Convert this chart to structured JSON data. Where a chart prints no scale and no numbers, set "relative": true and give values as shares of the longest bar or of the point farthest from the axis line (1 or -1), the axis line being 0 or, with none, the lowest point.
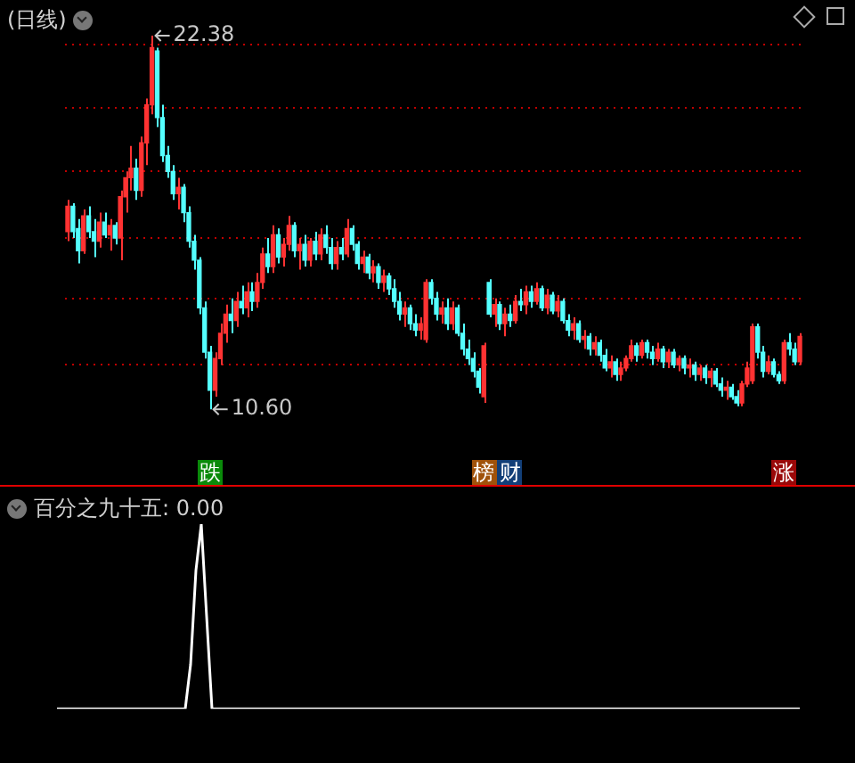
{
  "chart_data": [
    {
      "type": "candlestick",
      "title": "(日线)",
      "categories": [
        null,
        null,
        null,
        null,
        null,
        null,
        null,
        null,
        null,
        null,
        null,
        null,
        null,
        null,
        null,
        null,
        null,
        null,
        null,
        null,
        null,
        null,
        null,
        null,
        null,
        null,
        null,
        null,
        null,
        null,
        null,
        null,
        null,
        null,
        null,
        null,
        null,
        null,
        null,
        null,
        null,
        null,
        null,
        null,
        null,
        null,
        null,
        null,
        null,
        null,
        null,
        null,
        null,
        null,
        null,
        null,
        null,
        null,
        null,
        null,
        null,
        null,
        null,
        null,
        null,
        null,
        null,
        null,
        null,
        null,
        null,
        null,
        null,
        null,
        null,
        null,
        null,
        null,
        null,
        null,
        null,
        null,
        null,
        null,
        null,
        null,
        null,
        null,
        null,
        null,
        null,
        null,
        null,
        null,
        null,
        null,
        null,
        null,
        null,
        null,
        null,
        null,
        null,
        null,
        null,
        null,
        null,
        null,
        null,
        null,
        null,
        null,
        null,
        null,
        null,
        null,
        null,
        null,
        null,
        null,
        null,
        null,
        null,
        null,
        null,
        null,
        null,
        null,
        null,
        null,
        null,
        null,
        null,
        null,
        null,
        null,
        null,
        null,
        null,
        null
      ],
      "ohlc": [
        [
          16.2,
          17.2,
          15.9,
          17.0
        ],
        [
          17.0,
          17.1,
          16.0,
          16.2
        ],
        [
          16.3,
          16.6,
          15.2,
          15.6
        ],
        [
          15.6,
          16.9,
          15.5,
          16.7
        ],
        [
          16.7,
          17.0,
          16.0,
          16.2
        ],
        [
          16.2,
          16.6,
          15.4,
          15.9
        ],
        [
          15.9,
          16.8,
          15.7,
          16.5
        ],
        [
          16.5,
          16.8,
          16.0,
          16.1
        ],
        [
          16.1,
          16.6,
          15.6,
          16.4
        ],
        [
          16.4,
          16.5,
          15.8,
          16.0
        ],
        [
          16.0,
          17.5,
          15.3,
          17.3
        ],
        [
          17.3,
          18.1,
          16.8,
          17.9
        ],
        [
          17.9,
          18.9,
          17.5,
          18.2
        ],
        [
          18.2,
          18.5,
          17.2,
          17.5
        ],
        [
          17.5,
          19.2,
          17.3,
          19.0
        ],
        [
          19.0,
          20.4,
          18.3,
          20.2
        ],
        [
          20.2,
          22.38,
          19.9,
          22.0
        ],
        [
          21.9,
          22.0,
          19.5,
          19.8
        ],
        [
          19.8,
          20.2,
          18.4,
          18.6
        ],
        [
          18.6,
          18.9,
          17.9,
          18.1
        ],
        [
          18.1,
          18.3,
          17.2,
          17.4
        ],
        [
          17.4,
          17.9,
          16.9,
          17.6
        ],
        [
          17.6,
          17.7,
          16.5,
          16.8
        ],
        [
          16.8,
          17.0,
          15.7,
          15.9
        ],
        [
          15.9,
          16.1,
          15.0,
          15.3
        ],
        [
          15.3,
          15.4,
          13.6,
          13.8
        ],
        [
          13.8,
          14.0,
          12.2,
          12.4
        ],
        [
          12.4,
          12.6,
          10.6,
          11.2
        ],
        [
          11.2,
          12.4,
          11.0,
          12.2
        ],
        [
          12.2,
          13.3,
          12.0,
          13.0
        ],
        [
          13.0,
          13.9,
          12.7,
          13.6
        ],
        [
          13.6,
          14.1,
          13.0,
          13.4
        ],
        [
          13.4,
          14.3,
          13.2,
          14.0
        ],
        [
          14.0,
          14.5,
          13.6,
          13.8
        ],
        [
          13.8,
          14.6,
          13.5,
          14.3
        ],
        [
          14.3,
          14.6,
          13.7,
          14.0
        ],
        [
          14.0,
          14.9,
          13.8,
          14.6
        ],
        [
          14.6,
          15.7,
          14.4,
          15.5
        ],
        [
          15.5,
          16.0,
          14.9,
          15.1
        ],
        [
          15.1,
          16.4,
          14.9,
          16.1
        ],
        [
          16.1,
          16.3,
          15.2,
          15.4
        ],
        [
          15.4,
          16.0,
          15.1,
          15.8
        ],
        [
          15.8,
          16.7,
          15.6,
          16.4
        ],
        [
          16.4,
          16.5,
          15.4,
          15.6
        ],
        [
          15.6,
          16.0,
          15.0,
          15.8
        ],
        [
          15.8,
          16.1,
          15.1,
          15.3
        ],
        [
          15.3,
          16.0,
          15.1,
          15.9
        ],
        [
          15.9,
          16.2,
          15.3,
          15.5
        ],
        [
          15.5,
          16.3,
          15.3,
          16.1
        ],
        [
          16.1,
          16.4,
          15.5,
          15.7
        ],
        [
          15.7,
          16.0,
          15.0,
          15.2
        ],
        [
          15.2,
          15.9,
          15.0,
          15.7
        ],
        [
          15.7,
          16.0,
          15.3,
          15.5
        ],
        [
          15.5,
          16.6,
          15.4,
          16.3
        ],
        [
          16.3,
          16.4,
          15.6,
          15.8
        ],
        [
          15.8,
          15.9,
          15.0,
          15.2
        ],
        [
          15.2,
          15.6,
          14.9,
          15.4
        ],
        [
          15.4,
          15.5,
          14.7,
          14.9
        ],
        [
          14.9,
          15.3,
          14.6,
          15.1
        ],
        [
          15.1,
          15.2,
          14.4,
          14.6
        ],
        [
          14.6,
          15.0,
          14.3,
          14.8
        ],
        [
          14.8,
          14.9,
          14.2,
          14.4
        ],
        [
          14.4,
          14.7,
          13.8,
          14.0
        ],
        [
          14.0,
          14.3,
          13.4,
          13.6
        ],
        [
          13.6,
          14.0,
          13.2,
          13.8
        ],
        [
          13.8,
          13.9,
          13.1,
          13.3
        ],
        [
          13.3,
          13.6,
          12.9,
          13.1
        ],
        [
          13.1,
          13.5,
          12.8,
          13.3
        ],
        [
          12.8,
          14.7,
          12.7,
          14.6
        ],
        [
          14.6,
          14.7,
          13.9,
          14.1
        ],
        [
          14.1,
          14.3,
          13.4,
          13.6
        ],
        [
          13.6,
          14.0,
          13.3,
          13.8
        ],
        [
          13.8,
          14.1,
          13.1,
          13.3
        ],
        [
          13.3,
          14.0,
          13.1,
          13.8
        ],
        [
          13.8,
          13.9,
          12.9,
          13.0
        ],
        [
          13.0,
          13.3,
          12.3,
          12.5
        ],
        [
          12.5,
          12.8,
          12.0,
          12.2
        ],
        [
          12.2,
          12.4,
          11.6,
          11.8
        ],
        [
          11.8,
          11.9,
          11.1,
          11.3
        ],
        [
          11.0,
          12.7,
          10.8,
          12.6
        ],
        [
          14.6,
          14.7,
          13.5,
          13.6
        ],
        [
          13.6,
          14.1,
          13.2,
          13.9
        ],
        [
          13.9,
          14.0,
          13.1,
          13.3
        ],
        [
          13.3,
          13.8,
          12.9,
          13.6
        ],
        [
          13.6,
          13.9,
          13.2,
          13.4
        ],
        [
          13.4,
          14.2,
          13.3,
          14.0
        ],
        [
          14.0,
          14.4,
          13.7,
          13.9
        ],
        [
          13.9,
          14.5,
          13.6,
          14.3
        ],
        [
          14.3,
          14.5,
          13.8,
          14.0
        ],
        [
          14.0,
          14.6,
          13.9,
          14.4
        ],
        [
          14.4,
          14.5,
          13.7,
          13.8
        ],
        [
          13.8,
          14.4,
          13.6,
          14.2
        ],
        [
          14.2,
          14.3,
          13.6,
          13.7
        ],
        [
          13.7,
          14.2,
          13.5,
          14.0
        ],
        [
          14.0,
          14.1,
          13.3,
          13.4
        ],
        [
          13.4,
          13.6,
          12.9,
          13.1
        ],
        [
          13.1,
          13.5,
          12.8,
          13.3
        ],
        [
          13.3,
          13.4,
          12.7,
          12.8
        ],
        [
          12.8,
          13.1,
          12.5,
          12.9
        ],
        [
          12.9,
          13.0,
          12.3,
          12.5
        ],
        [
          12.5,
          12.9,
          12.3,
          12.7
        ],
        [
          12.7,
          12.8,
          12.1,
          12.3
        ],
        [
          12.3,
          12.5,
          11.8,
          11.9
        ],
        [
          11.9,
          12.3,
          11.6,
          12.1
        ],
        [
          12.1,
          12.2,
          11.5,
          11.7
        ],
        [
          11.7,
          12.1,
          11.5,
          11.9
        ],
        [
          11.9,
          12.3,
          11.8,
          12.2
        ],
        [
          12.2,
          12.8,
          12.1,
          12.6
        ],
        [
          12.6,
          12.7,
          12.1,
          12.3
        ],
        [
          12.3,
          12.8,
          12.2,
          12.7
        ],
        [
          12.7,
          12.8,
          12.2,
          12.4
        ],
        [
          12.4,
          12.6,
          12.0,
          12.2
        ],
        [
          12.2,
          12.7,
          12.1,
          12.5
        ],
        [
          12.5,
          12.6,
          11.9,
          12.1
        ],
        [
          12.1,
          12.5,
          11.9,
          12.4
        ],
        [
          12.4,
          12.5,
          11.9,
          12.0
        ],
        [
          12.0,
          12.3,
          11.8,
          12.2
        ],
        [
          12.2,
          12.3,
          11.7,
          11.9
        ],
        [
          11.9,
          12.2,
          11.6,
          12.0
        ],
        [
          12.0,
          12.1,
          11.5,
          11.7
        ],
        [
          11.7,
          12.0,
          11.5,
          11.9
        ],
        [
          11.9,
          12.0,
          11.4,
          11.6
        ],
        [
          11.6,
          11.9,
          11.3,
          11.8
        ],
        [
          11.8,
          11.9,
          11.3,
          11.4
        ],
        [
          11.4,
          11.6,
          11.0,
          11.2
        ],
        [
          11.2,
          11.5,
          10.9,
          11.3
        ],
        [
          11.3,
          11.4,
          10.9,
          11.0
        ],
        [
          11.0,
          11.2,
          10.7,
          10.8
        ],
        [
          10.8,
          11.5,
          10.7,
          11.4
        ],
        [
          11.4,
          12.1,
          11.3,
          11.9
        ],
        [
          11.5,
          13.3,
          11.4,
          13.2
        ],
        [
          13.2,
          13.3,
          12.2,
          12.4
        ],
        [
          12.4,
          12.6,
          11.6,
          11.8
        ],
        [
          11.8,
          12.3,
          11.7,
          12.1
        ],
        [
          12.1,
          12.2,
          11.6,
          11.7
        ],
        [
          11.7,
          11.8,
          11.4,
          11.5
        ],
        [
          11.5,
          12.8,
          11.4,
          12.7
        ],
        [
          12.7,
          13.0,
          12.3,
          12.5
        ],
        [
          12.5,
          12.7,
          12.0,
          12.1
        ],
        [
          12.1,
          13.0,
          12.0,
          12.9
        ]
      ],
      "colors": [
        "#ff3232",
        "#54ffff",
        "#54ffff",
        "#ff3232",
        "#54ffff",
        "#54ffff",
        "#ff3232",
        "#54ffff",
        "#ff3232",
        "#54ffff",
        "#ff3232",
        "#ff3232",
        "#ff3232",
        "#54ffff",
        "#ff3232",
        "#ff3232",
        "#ff3232",
        "#54ffff",
        "#54ffff",
        "#54ffff",
        "#54ffff",
        "#ff3232",
        "#54ffff",
        "#54ffff",
        "#54ffff",
        "#54ffff",
        "#54ffff",
        "#54ffff",
        "#ff3232",
        "#ff3232",
        "#ff3232",
        "#54ffff",
        "#ff3232",
        "#54ffff",
        "#ff3232",
        "#54ffff",
        "#ff3232",
        "#ff3232",
        "#54ffff",
        "#ff3232",
        "#54ffff",
        "#ff3232",
        "#ff3232",
        "#54ffff",
        "#ff3232",
        "#54ffff",
        "#ff3232",
        "#54ffff",
        "#ff3232",
        "#54ffff",
        "#54ffff",
        "#ff3232",
        "#54ffff",
        "#ff3232",
        "#54ffff",
        "#54ffff",
        "#ff3232",
        "#54ffff",
        "#ff3232",
        "#54ffff",
        "#ff3232",
        "#54ffff",
        "#54ffff",
        "#54ffff",
        "#ff3232",
        "#54ffff",
        "#54ffff",
        "#ff3232",
        "#ff3232",
        "#54ffff",
        "#54ffff",
        "#ff3232",
        "#54ffff",
        "#ff3232",
        "#54ffff",
        "#54ffff",
        "#54ffff",
        "#54ffff",
        "#54ffff",
        "#ff3232",
        "#54ffff",
        "#ff3232",
        "#54ffff",
        "#ff3232",
        "#54ffff",
        "#ff3232",
        "#54ffff",
        "#ff3232",
        "#54ffff",
        "#ff3232",
        "#54ffff",
        "#ff3232",
        "#54ffff",
        "#ff3232",
        "#54ffff",
        "#54ffff",
        "#ff3232",
        "#54ffff",
        "#ff3232",
        "#54ffff",
        "#ff3232",
        "#54ffff",
        "#54ffff",
        "#ff3232",
        "#54ffff",
        "#ff3232",
        "#ff3232",
        "#ff3232",
        "#54ffff",
        "#ff3232",
        "#54ffff",
        "#54ffff",
        "#ff3232",
        "#54ffff",
        "#ff3232",
        "#54ffff",
        "#ff3232",
        "#54ffff",
        "#ff3232",
        "#54ffff",
        "#ff3232",
        "#54ffff",
        "#ff3232",
        "#54ffff",
        "#54ffff",
        "#ff3232",
        "#54ffff",
        "#54ffff",
        "#ff3232",
        "#ff3232",
        "#ff3232",
        "#54ffff",
        "#54ffff",
        "#ff3232",
        "#54ffff",
        "#54ffff",
        "#ff3232",
        "#54ffff",
        "#54ffff",
        "#ff3232"
      ],
      "yticks": [
        {
          "value": 22.1,
          "label": null
        },
        {
          "value": 20.1,
          "label": null
        },
        {
          "value": 18.1,
          "label": null
        },
        {
          "value": 16.0,
          "label": null
        },
        {
          "value": 14.1,
          "label": null
        },
        {
          "value": 12.0,
          "label": null
        }
      ],
      "grid": "y",
      "annotations": [
        "22.38",
        "10.60",
        "跌",
        "榜",
        "财",
        "涨"
      ]
    },
    {
      "type": "line",
      "title": "百分之九十五: 0.00",
      "relative": true,
      "color": "#ffffff",
      "categories": [
        null,
        null,
        null,
        null,
        null,
        null,
        null,
        null,
        null,
        null,
        null,
        null,
        null,
        null,
        null,
        null,
        null,
        null,
        null,
        null,
        null,
        null,
        null,
        null,
        null,
        null,
        null,
        null,
        null,
        null,
        null,
        null,
        null,
        null,
        null,
        null,
        null,
        null,
        null,
        null,
        null,
        null,
        null,
        null,
        null,
        null,
        null,
        null,
        null,
        null,
        null,
        null,
        null,
        null,
        null,
        null,
        null,
        null,
        null,
        null,
        null,
        null,
        null,
        null,
        null,
        null,
        null,
        null,
        null,
        null,
        null,
        null,
        null,
        null,
        null,
        null,
        null,
        null,
        null,
        null,
        null,
        null,
        null,
        null,
        null,
        null,
        null,
        null,
        null,
        null,
        null,
        null,
        null,
        null,
        null,
        null,
        null,
        null,
        null,
        null,
        null,
        null,
        null,
        null,
        null,
        null,
        null,
        null,
        null,
        null,
        null,
        null,
        null,
        null,
        null,
        null,
        null,
        null,
        null,
        null,
        null,
        null,
        null,
        null,
        null,
        null,
        null,
        null,
        null,
        null,
        null,
        null,
        null,
        null,
        null,
        null,
        null,
        null,
        null,
        null
      ],
      "values": [
        0,
        0,
        0,
        0,
        0,
        0,
        0,
        0,
        0,
        0,
        0,
        0,
        0,
        0,
        0,
        0,
        0,
        0,
        0,
        0,
        0,
        0,
        0,
        0,
        0,
        0.24,
        0.75,
        1,
        0.5,
        0,
        0,
        0,
        0,
        0,
        0,
        0,
        0,
        0,
        0,
        0,
        0,
        0,
        0,
        0,
        0,
        0,
        0,
        0,
        0,
        0,
        0,
        0,
        0,
        0,
        0,
        0,
        0,
        0,
        0,
        0,
        0,
        0,
        0,
        0,
        0,
        0,
        0,
        0,
        0,
        0,
        0,
        0,
        0,
        0,
        0,
        0,
        0,
        0,
        0,
        0,
        0,
        0,
        0,
        0,
        0,
        0,
        0,
        0,
        0,
        0,
        0,
        0,
        0,
        0,
        0,
        0,
        0,
        0,
        0,
        0,
        0,
        0,
        0,
        0,
        0,
        0,
        0,
        0,
        0,
        0,
        0,
        0,
        0,
        0,
        0,
        0,
        0,
        0,
        0,
        0,
        0,
        0,
        0,
        0,
        0,
        0,
        0,
        0,
        0,
        0,
        0,
        0,
        0,
        0,
        0,
        0,
        0,
        0,
        0,
        0
      ]
    }
  ]
}
